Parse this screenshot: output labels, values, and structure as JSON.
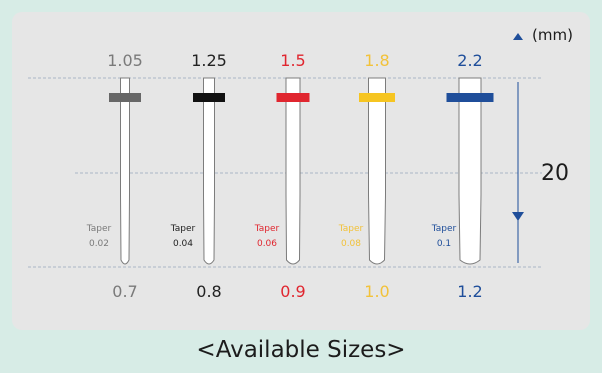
{
  "unit_label": "(mm)",
  "length_label": "20",
  "caption": "<Available Sizes>",
  "colors": {
    "background": "#d7ece6",
    "panel": "#e6e6e6",
    "dimension": "#1f4e9a",
    "guide": "#a9b6c6"
  },
  "posts": [
    {
      "top_size": "1.05",
      "tip_size": "0.7",
      "taper_label": "Taper",
      "taper_value": "0.02",
      "color": "#676767",
      "text_color": "#7a7a7a"
    },
    {
      "top_size": "1.25",
      "tip_size": "0.8",
      "taper_label": "Taper",
      "taper_value": "0.04",
      "color": "#111111",
      "text_color": "#222222"
    },
    {
      "top_size": "1.5",
      "tip_size": "0.9",
      "taper_label": "Taper",
      "taper_value": "0.06",
      "color": "#e0262f",
      "text_color": "#e0262f"
    },
    {
      "top_size": "1.8",
      "tip_size": "1.0",
      "taper_label": "Taper",
      "taper_value": "0.08",
      "color": "#f6c521",
      "text_color": "#f2c23a"
    },
    {
      "top_size": "2.2",
      "tip_size": "1.2",
      "taper_label": "Taper",
      "taper_value": "0.1",
      "color": "#1f4e9a",
      "text_color": "#1f4e9a"
    }
  ]
}
